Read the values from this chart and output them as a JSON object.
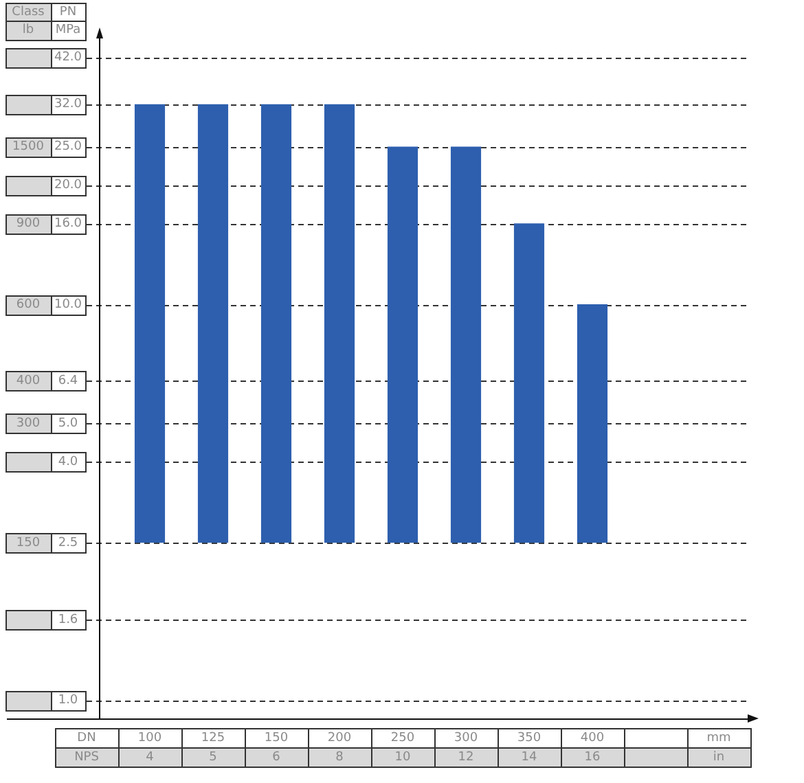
{
  "chart_data": {
    "type": "bar",
    "categories": [
      "100",
      "125",
      "150",
      "200",
      "250",
      "300",
      "350",
      "400",
      null
    ],
    "base": [
      2.5,
      2.5,
      2.5,
      2.5,
      2.5,
      2.5,
      2.5,
      2.5,
      null
    ],
    "values": [
      29.5,
      29.5,
      29.5,
      29.5,
      22.5,
      22.5,
      13.5,
      7.5,
      null
    ],
    "color": "#2d5fae",
    "log": true,
    "ylim": [
      0.9,
      50
    ],
    "yticks": [
      {
        "value": 1,
        "label": "1.0"
      },
      1.6,
      2.5,
      {
        "value": 4,
        "label": "4.0"
      },
      {
        "value": 5,
        "label": "5.0"
      },
      6.4,
      {
        "value": 10,
        "label": "10.0"
      },
      {
        "value": 16,
        "label": "16.0"
      },
      {
        "value": 20,
        "label": "20.0"
      },
      {
        "value": 25,
        "label": "25.0"
      },
      {
        "value": 32,
        "label": "32.0"
      },
      {
        "value": 42,
        "label": "42.0"
      }
    ],
    "ylabel": "PN",
    "xlabel": "DN",
    "grid": "y",
    "annotations": [
      "Class",
      "lb",
      "MPa",
      "NPS",
      "mm",
      "in",
      "1500",
      "900",
      "600",
      "400",
      "300",
      "150",
      "4",
      "5",
      "6",
      "8",
      "10",
      "12",
      "14",
      "16"
    ]
  }
}
